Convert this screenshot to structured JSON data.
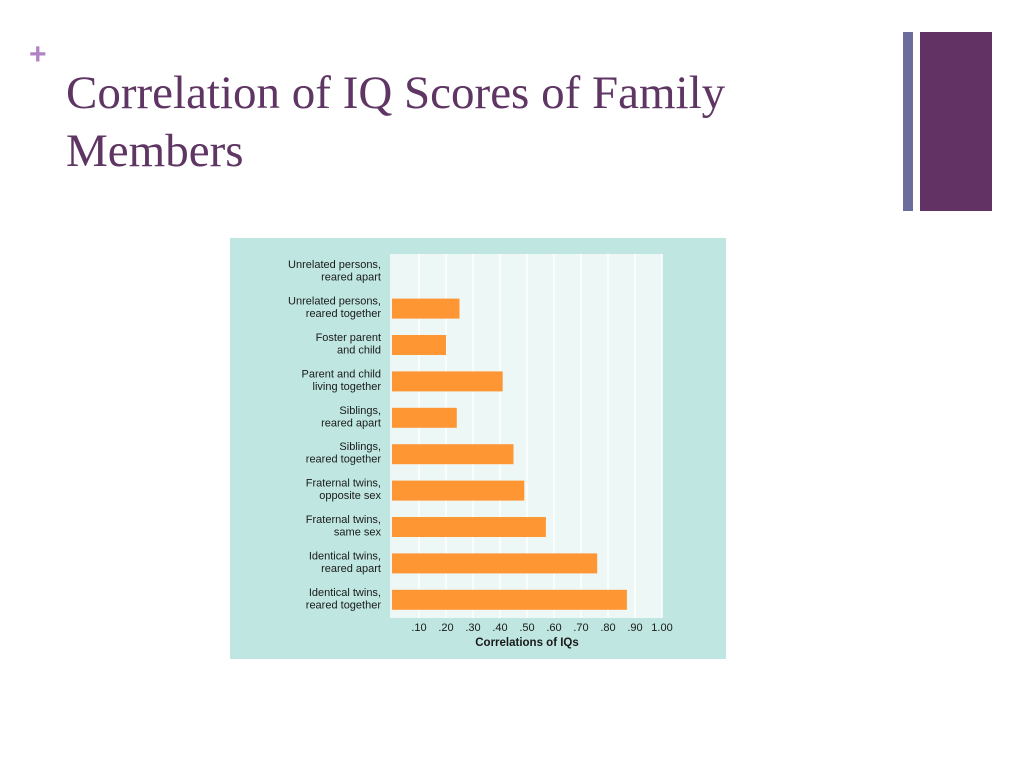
{
  "slide": {
    "bullet": "+",
    "title": "Correlation of IQ Scores of Family Members"
  },
  "colors": {
    "title": "#5e3563",
    "bullet": "#b183c4",
    "accent_thin": "#6b6b9c",
    "accent_thick": "#623264",
    "panel_bg": "#bfe6e0",
    "plot_bg": "#edf7f5",
    "grid": "#ffffff",
    "bar": "#ff9634",
    "text": "#1a1a1a"
  },
  "chart_data": {
    "type": "bar",
    "orientation": "horizontal",
    "categories": [
      [
        "Unrelated persons,",
        "reared apart"
      ],
      [
        "Unrelated persons,",
        "reared together"
      ],
      [
        "Foster parent",
        "and child"
      ],
      [
        "Parent and child",
        "living together"
      ],
      [
        "Siblings,",
        "reared apart"
      ],
      [
        "Siblings,",
        "reared together"
      ],
      [
        "Fraternal twins,",
        "opposite sex"
      ],
      [
        "Fraternal twins,",
        "same sex"
      ],
      [
        "Identical twins,",
        "reared apart"
      ],
      [
        "Identical twins,",
        "reared together"
      ]
    ],
    "values": [
      0.0,
      0.25,
      0.2,
      0.41,
      0.24,
      0.45,
      0.49,
      0.57,
      0.76,
      0.87
    ],
    "xlabel": "Correlations of IQs",
    "ylabel": "",
    "xlim": [
      0,
      1.0
    ],
    "xticks": [
      {
        "value": 0.1,
        "label": ".10"
      },
      {
        "value": 0.2,
        "label": ".20"
      },
      {
        "value": 0.3,
        "label": ".30"
      },
      {
        "value": 0.4,
        "label": ".40"
      },
      {
        "value": 0.5,
        "label": ".50"
      },
      {
        "value": 0.6,
        "label": ".60"
      },
      {
        "value": 0.7,
        "label": ".70"
      },
      {
        "value": 0.8,
        "label": ".80"
      },
      {
        "value": 0.9,
        "label": ".90"
      },
      {
        "value": 1.0,
        "label": "1.00"
      }
    ],
    "grid": true
  }
}
